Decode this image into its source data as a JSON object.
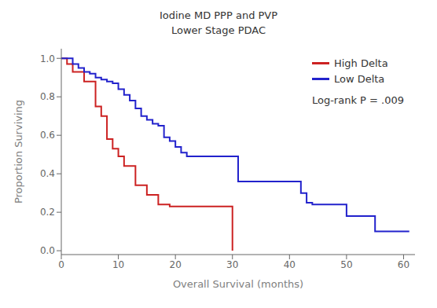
{
  "chart_data": {
    "type": "step",
    "title": "Iodine MD PPP and PVP",
    "subtitle": "Lower Stage PDAC",
    "xlabel": "Overall Survival (months)",
    "ylabel": "Proportion Surviving",
    "annotations": [
      "Log-rank P = .009"
    ],
    "series": [
      {
        "name": "High Delta",
        "color": "#CC2222",
        "x": [
          0,
          1,
          2,
          3,
          4,
          5,
          6,
          7,
          8,
          9,
          10,
          11,
          13,
          15,
          17,
          19,
          20,
          22,
          29,
          30
        ],
        "values": [
          1.0,
          0.97,
          0.93,
          0.93,
          0.88,
          0.88,
          0.75,
          0.7,
          0.58,
          0.53,
          0.49,
          0.44,
          0.34,
          0.29,
          0.24,
          0.23,
          0.23,
          0.23,
          0.23,
          0.0
        ]
      },
      {
        "name": "Low Delta",
        "color": "#2222CC",
        "x": [
          0,
          1,
          2,
          3,
          4,
          5,
          6,
          7,
          8,
          9,
          10,
          11,
          12,
          13,
          14,
          15,
          16,
          17,
          18,
          19,
          20,
          21,
          22,
          25,
          31,
          34,
          40,
          42,
          43,
          44,
          50,
          51,
          55,
          61
        ],
        "values": [
          1.0,
          1.0,
          0.97,
          0.95,
          0.93,
          0.92,
          0.9,
          0.89,
          0.88,
          0.87,
          0.84,
          0.81,
          0.78,
          0.74,
          0.7,
          0.68,
          0.66,
          0.65,
          0.59,
          0.57,
          0.54,
          0.51,
          0.49,
          0.49,
          0.36,
          0.36,
          0.36,
          0.3,
          0.25,
          0.24,
          0.18,
          0.18,
          0.1,
          0.1
        ]
      }
    ],
    "xlim": [
      0,
      62
    ],
    "ylim": [
      -0.02,
      1.05
    ],
    "xticks": [
      0,
      10,
      20,
      30,
      40,
      50,
      60
    ],
    "yticks": [
      {
        "value": 0.0,
        "label": "0.0"
      },
      {
        "value": 0.2,
        "label": "0.2"
      },
      {
        "value": 0.4,
        "label": "0.4"
      },
      {
        "value": 0.6,
        "label": "0.6"
      },
      {
        "value": 0.8,
        "label": "0.8"
      },
      {
        "value": 1.0,
        "label": "1.0"
      }
    ],
    "grid": false,
    "legend": "upper right"
  }
}
